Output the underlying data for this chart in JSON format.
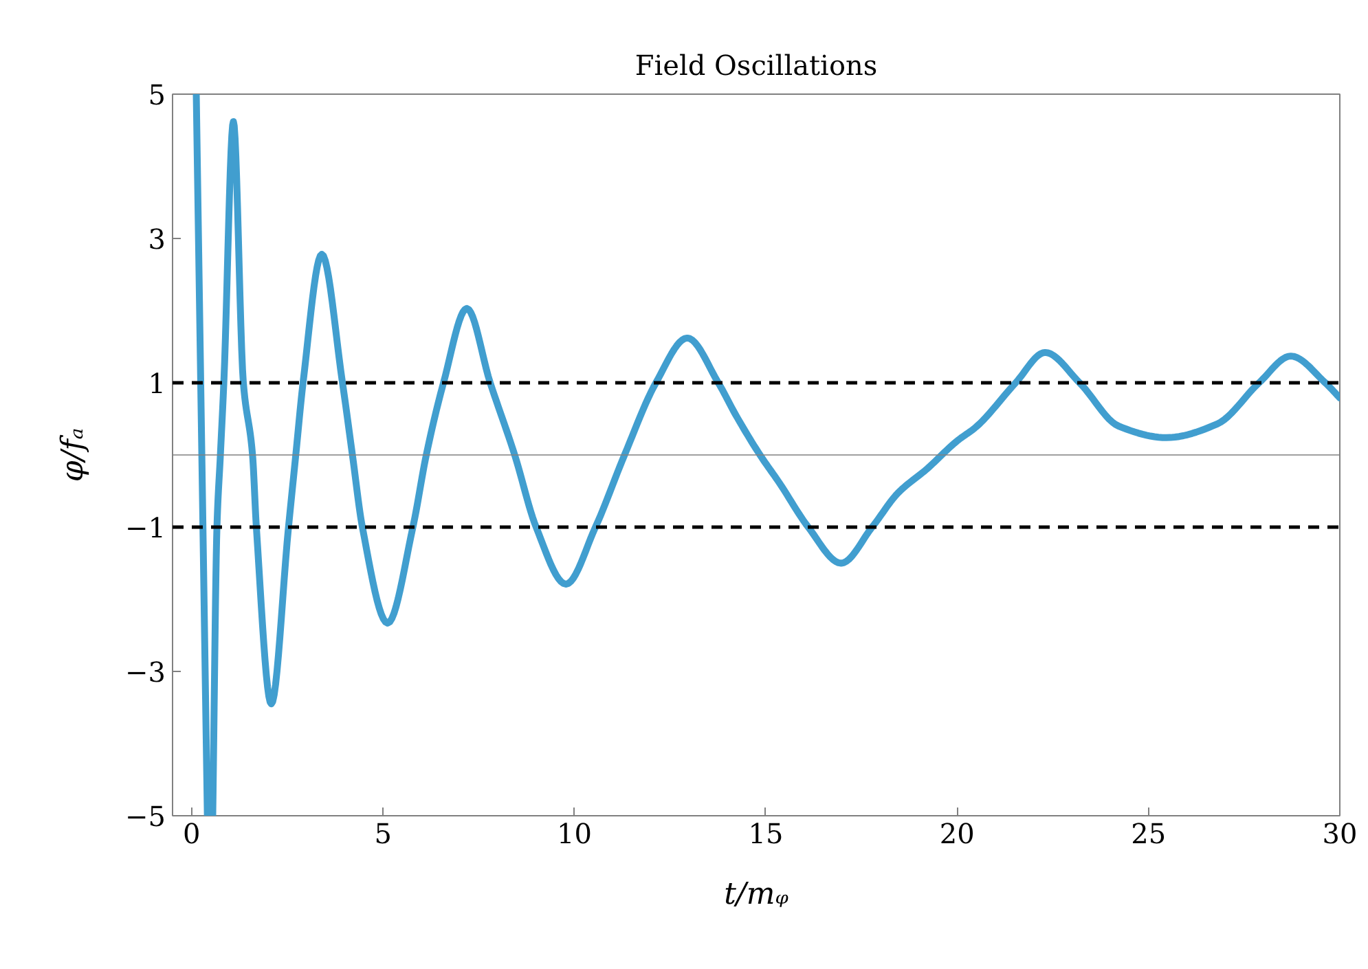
{
  "chart_data": {
    "type": "line",
    "title": "Field Oscillations",
    "xlabel": "t/mᵩ",
    "ylabel": "φ/fₐ",
    "xlim": [
      -0.5,
      30
    ],
    "ylim": [
      -5,
      5
    ],
    "xticks": [
      0,
      5,
      10,
      15,
      20,
      25,
      30
    ],
    "yticks": [
      -5,
      -3,
      -1,
      1,
      3,
      5
    ],
    "grid": false,
    "line_style": "solid",
    "x": [
      0.12,
      0.41,
      0.48,
      0.55,
      0.66,
      0.75,
      0.84,
      1.09,
      1.35,
      1.59,
      1.69,
      2.08,
      2.53,
      2.72,
      2.91,
      3.4,
      3.94,
      4.2,
      4.46,
      5.12,
      5.78,
      6.13,
      6.58,
      7.19,
      7.8,
      8.44,
      9.0,
      9.78,
      10.55,
      11.31,
      12.13,
      12.95,
      13.76,
      14.21,
      14.85,
      15.36,
      16.11,
      16.97,
      17.78,
      18.45,
      19.22,
      19.99,
      20.5,
      21.53,
      22.3,
      23.2,
      24.22,
      25.47,
      26.8,
      27.89,
      28.72,
      29.62,
      30.0
    ],
    "series": [
      {
        "color": "#419ecf",
        "values": [
          5,
          -5,
          null,
          -5,
          -1,
          0,
          1,
          4.62,
          1,
          0,
          -1,
          -3.45,
          -1,
          0,
          1,
          2.78,
          1,
          0,
          -1,
          -2.33,
          -1,
          0,
          1,
          2.03,
          1,
          0,
          -1,
          -1.79,
          -1,
          0,
          1,
          1.62,
          1,
          0.56,
          0,
          -0.39,
          -1,
          -1.5,
          -1,
          -0.53,
          -0.19,
          0.19,
          0.39,
          1,
          1.42,
          1,
          0.4,
          0.24,
          0.43,
          1,
          1.37,
          1,
          0.79
        ]
      }
    ],
    "ref_lines": [
      {
        "axis": "y",
        "value": 1,
        "color": "#000000",
        "line_style": "dashed"
      },
      {
        "axis": "y",
        "value": -1,
        "color": "#000000",
        "line_style": "dashed"
      },
      {
        "axis": "y",
        "value": 0,
        "color": "#808080",
        "line_style": "solid"
      }
    ]
  }
}
